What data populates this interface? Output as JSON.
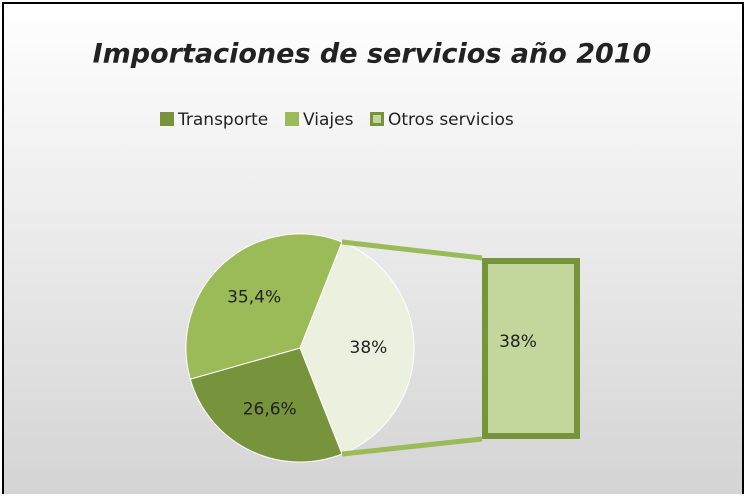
{
  "chart_data": {
    "type": "bar_of_pie",
    "title": "Importaciones de servicios año 2010",
    "categories": [
      "Transporte",
      "Viajes",
      "Otros servicios"
    ],
    "values": [
      26.6,
      35.4,
      38
    ],
    "value_labels": [
      "26,6%",
      "35,4%",
      "38%"
    ],
    "colors": [
      "#77933c",
      "#9bbb59",
      "#ebf1de"
    ],
    "bar_color": "#c3d69b",
    "legend": "top"
  }
}
